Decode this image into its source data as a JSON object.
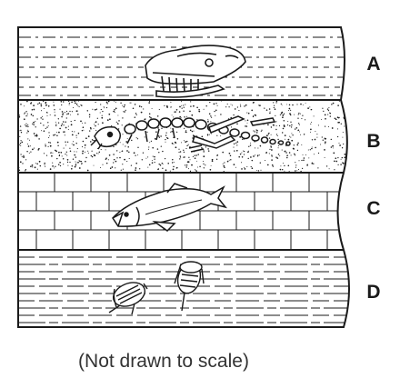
{
  "layers": [
    {
      "label": "A",
      "fossil": "mammal-skull",
      "pattern": "dashed-lines"
    },
    {
      "label": "B",
      "fossil": "reptile-skeleton",
      "pattern": "sandstone-dots"
    },
    {
      "label": "C",
      "fossil": "fish",
      "pattern": "limestone-bricks"
    },
    {
      "label": "D",
      "fossil": "trilobites",
      "pattern": "shale-lines"
    }
  ],
  "caption": "(Not drawn to scale)",
  "colors": {
    "line": "#1a1a1a",
    "background": "#ffffff",
    "label": "#1a1a1a"
  }
}
